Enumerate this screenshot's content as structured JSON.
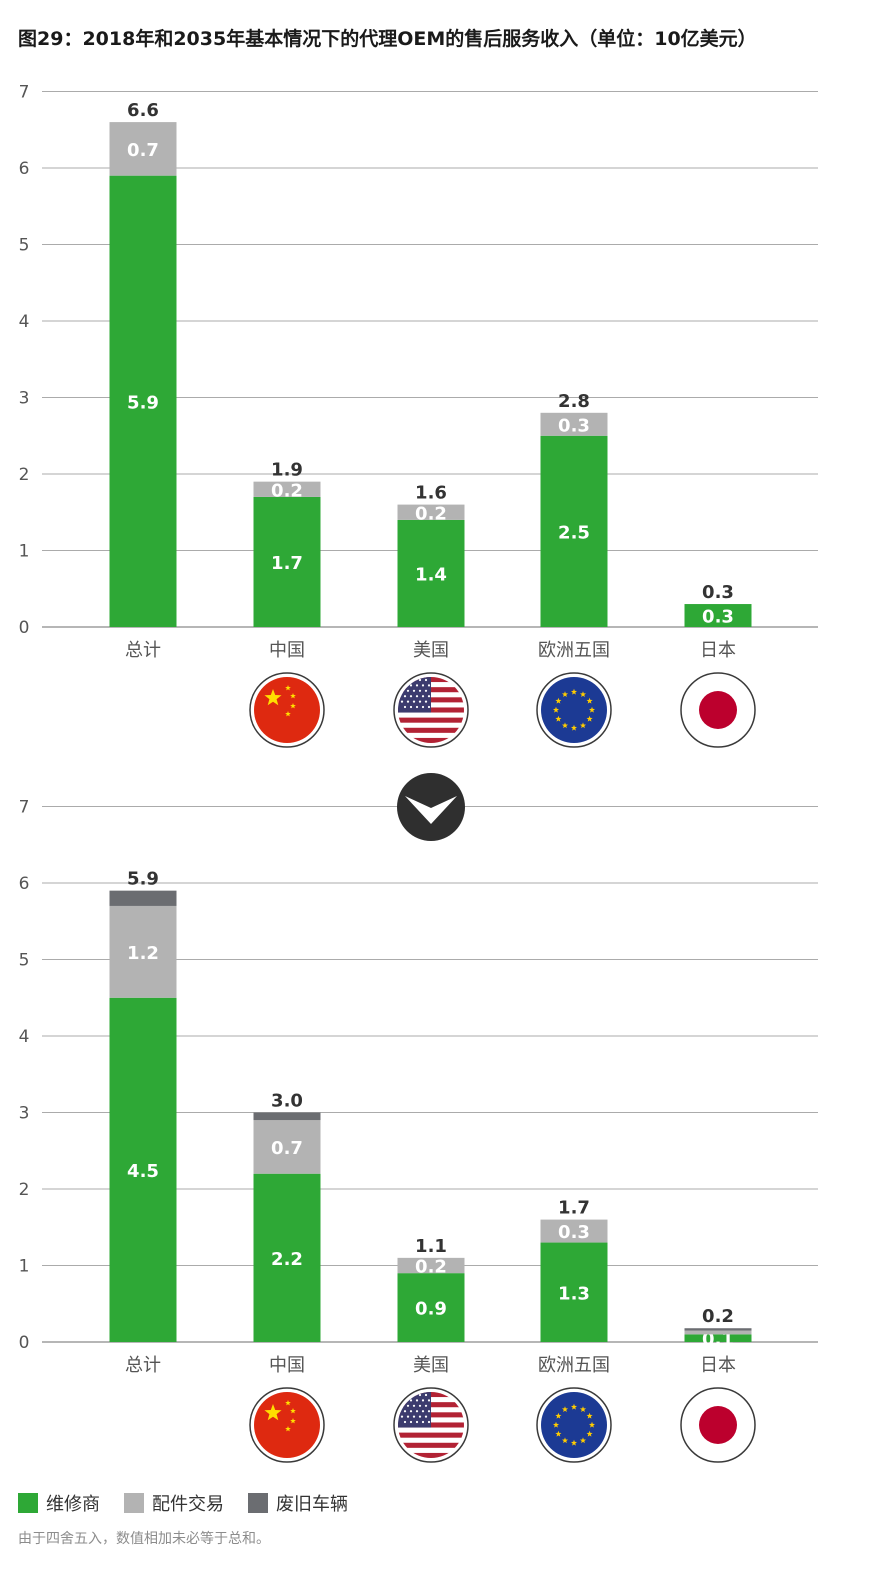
{
  "title": "图29：2018年和2035年基本情况下的代理OEM的售后服务收入（单位：10亿美元）",
  "legend": [
    {
      "label": "维修商",
      "color": "#2ea836"
    },
    {
      "label": "配件交易",
      "color": "#b3b3b3"
    },
    {
      "label": "废旧车辆",
      "color": "#6b6d71"
    }
  ],
  "footnote": "由于四舍五入，数值相加未必等于总和。",
  "chart_data": [
    {
      "type": "bar",
      "stacked": true,
      "categories": [
        "总计",
        "中国",
        "美国",
        "欧洲五国",
        "日本"
      ],
      "ylim": [
        0,
        7
      ],
      "yticks": [
        "0",
        "1",
        "2",
        "3",
        "4",
        "5",
        "6",
        "7"
      ],
      "grid": true,
      "series": [
        {
          "name": "维修商",
          "color": "#2ea836",
          "values": [
            5.9,
            1.7,
            1.4,
            2.5,
            0.3
          ],
          "labels": [
            "5.9",
            "1.7",
            "1.4",
            "2.5",
            "0.3"
          ]
        },
        {
          "name": "配件交易",
          "color": "#b3b3b3",
          "values": [
            0.7,
            0.2,
            0.2,
            0.3,
            0.0
          ],
          "labels": [
            "0.7",
            "0.2",
            "0.2",
            "0.3",
            ""
          ]
        },
        {
          "name": "废旧车辆",
          "color": "#6b6d71",
          "values": [
            0,
            0,
            0,
            0,
            0
          ],
          "labels": [
            "",
            "",
            "",
            "",
            ""
          ]
        }
      ],
      "totals": [
        "6.6",
        "1.9",
        "1.6",
        "2.8",
        "0.3"
      ]
    },
    {
      "type": "bar",
      "stacked": true,
      "categories": [
        "总计",
        "中国",
        "美国",
        "欧洲五国",
        "日本"
      ],
      "ylim": [
        0,
        7
      ],
      "yticks": [
        "0",
        "1",
        "2",
        "3",
        "4",
        "5",
        "6",
        "7"
      ],
      "grid": true,
      "series": [
        {
          "name": "维修商",
          "color": "#2ea836",
          "values": [
            4.5,
            2.2,
            0.9,
            1.3,
            0.1
          ],
          "labels": [
            "4.5",
            "2.2",
            "0.9",
            "1.3",
            "0.1"
          ]
        },
        {
          "name": "配件交易",
          "color": "#b3b3b3",
          "values": [
            1.2,
            0.7,
            0.2,
            0.3,
            0.05
          ],
          "labels": [
            "1.2",
            "0.7",
            "0.2",
            "0.3",
            ""
          ]
        },
        {
          "name": "废旧车辆",
          "color": "#6b6d71",
          "values": [
            0.2,
            0.1,
            0.0,
            0.0,
            0.03
          ],
          "labels": [
            "",
            "",
            "",
            "",
            ""
          ]
        }
      ],
      "totals": [
        "5.9",
        "3.0",
        "1.1",
        "1.7",
        "0.2"
      ]
    }
  ],
  "flags": [
    "china-flag-icon",
    "usa-flag-icon",
    "eu-flag-icon",
    "japan-flag-icon"
  ],
  "divider_icon": "chevron-down-icon"
}
